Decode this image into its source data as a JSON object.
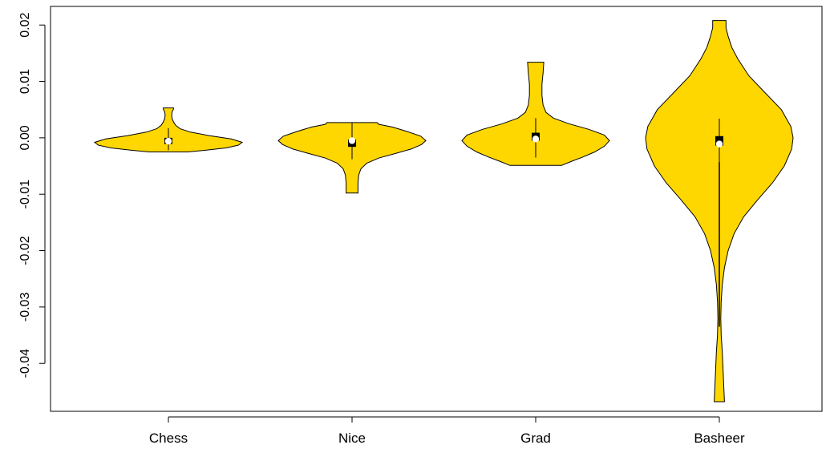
{
  "chart_data": {
    "type": "violin",
    "title": "",
    "xlabel": "",
    "ylabel": "",
    "ylim": [
      -0.0485,
      0.0233
    ],
    "yticks": [
      {
        "value": 0.02,
        "label": "0.02"
      },
      {
        "value": 0.01,
        "label": "0.01"
      },
      {
        "value": 0.0,
        "label": "0.00"
      },
      {
        "value": -0.01,
        "label": "-0.01"
      },
      {
        "value": -0.02,
        "label": "-0.02"
      },
      {
        "value": -0.03,
        "label": "-0.03"
      },
      {
        "value": -0.04,
        "label": "-0.04"
      }
    ],
    "categories": [
      "Chess",
      "Nice",
      "Grad",
      "Basheer"
    ],
    "fill_color": "#FFD700",
    "series": [
      {
        "category": "Chess",
        "min": -0.0025,
        "max": 0.0053,
        "q1": -0.0011,
        "q3": 0.0,
        "median": -0.0006,
        "whisker_low": -0.0022,
        "whisker_high": 0.0017,
        "density": [
          [
            -0.0025,
            0.26
          ],
          [
            -0.0022,
            0.5
          ],
          [
            -0.0018,
            0.78
          ],
          [
            -0.0013,
            0.95
          ],
          [
            -0.0008,
            1.0
          ],
          [
            -0.0002,
            0.85
          ],
          [
            0.0004,
            0.55
          ],
          [
            0.001,
            0.3
          ],
          [
            0.0016,
            0.16
          ],
          [
            0.0022,
            0.1
          ],
          [
            0.0028,
            0.07
          ],
          [
            0.0034,
            0.05
          ],
          [
            0.004,
            0.045
          ],
          [
            0.0046,
            0.05
          ],
          [
            0.0051,
            0.07
          ],
          [
            0.0053,
            0.07
          ]
        ]
      },
      {
        "category": "Nice",
        "min": -0.0098,
        "max": 0.0027,
        "q1": -0.0016,
        "q3": -0.0003,
        "median": -0.0005,
        "whisker_low": -0.0038,
        "whisker_high": 0.0027,
        "density": [
          [
            -0.0098,
            0.08
          ],
          [
            -0.008,
            0.08
          ],
          [
            -0.0066,
            0.09
          ],
          [
            -0.0055,
            0.12
          ],
          [
            -0.0045,
            0.2
          ],
          [
            -0.0036,
            0.36
          ],
          [
            -0.0028,
            0.58
          ],
          [
            -0.002,
            0.8
          ],
          [
            -0.0012,
            0.94
          ],
          [
            -0.0005,
            1.0
          ],
          [
            0.0003,
            0.93
          ],
          [
            0.0011,
            0.75
          ],
          [
            0.0019,
            0.55
          ],
          [
            0.0024,
            0.36
          ],
          [
            0.0027,
            0.34
          ]
        ]
      },
      {
        "category": "Grad",
        "min": -0.0049,
        "max": 0.0134,
        "q1": -0.0005,
        "q3": 0.0009,
        "median": -0.0002,
        "whisker_low": -0.0035,
        "whisker_high": 0.0035,
        "density": [
          [
            -0.0049,
            0.35
          ],
          [
            -0.0042,
            0.48
          ],
          [
            -0.0034,
            0.64
          ],
          [
            -0.0025,
            0.8
          ],
          [
            -0.0015,
            0.93
          ],
          [
            -0.0005,
            1.0
          ],
          [
            0.0005,
            0.93
          ],
          [
            0.0015,
            0.72
          ],
          [
            0.0025,
            0.45
          ],
          [
            0.0035,
            0.24
          ],
          [
            0.0045,
            0.14
          ],
          [
            0.0058,
            0.1
          ],
          [
            0.0075,
            0.085
          ],
          [
            0.0095,
            0.085
          ],
          [
            0.0115,
            0.1
          ],
          [
            0.0134,
            0.11
          ]
        ]
      },
      {
        "category": "Basheer",
        "min": -0.0468,
        "max": 0.0208,
        "q1": -0.0014,
        "q3": 0.0003,
        "median": -0.0011,
        "whisker_low": -0.0043,
        "whisker_high": 0.0034,
        "density": [
          [
            -0.0468,
            0.07
          ],
          [
            -0.044,
            0.06
          ],
          [
            -0.041,
            0.05
          ],
          [
            -0.038,
            0.04
          ],
          [
            -0.035,
            0.025
          ],
          [
            -0.032,
            0.02
          ],
          [
            -0.029,
            0.025
          ],
          [
            -0.026,
            0.04
          ],
          [
            -0.023,
            0.07
          ],
          [
            -0.02,
            0.12
          ],
          [
            -0.017,
            0.2
          ],
          [
            -0.014,
            0.33
          ],
          [
            -0.011,
            0.52
          ],
          [
            -0.008,
            0.72
          ],
          [
            -0.005,
            0.88
          ],
          [
            -0.002,
            0.98
          ],
          [
            0.0,
            1.0
          ],
          [
            0.002,
            0.97
          ],
          [
            0.005,
            0.84
          ],
          [
            0.008,
            0.62
          ],
          [
            0.011,
            0.4
          ],
          [
            0.014,
            0.25
          ],
          [
            0.016,
            0.17
          ],
          [
            0.018,
            0.12
          ],
          [
            0.0195,
            0.09
          ],
          [
            0.0208,
            0.09
          ]
        ]
      }
    ]
  }
}
